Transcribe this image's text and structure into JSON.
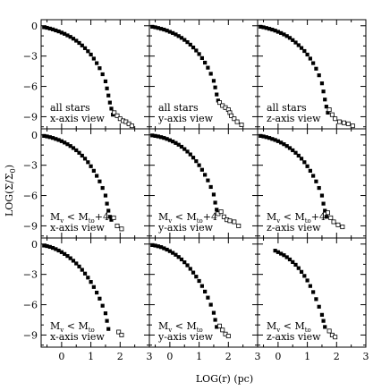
{
  "chart_data": {
    "type": "scatter",
    "layout": {
      "rows": 3,
      "cols": 3,
      "shared_axes": true
    },
    "xlabel": "LOG(r) (pc)",
    "ylabel": "LOG(Σ/Σ",
    "ylabel_sub": "0",
    "ylabel_tail": ")",
    "xlim": [
      -0.7,
      3.0
    ],
    "ylim": [
      -10.2,
      0.6
    ],
    "x_ticks": [
      0,
      1,
      2,
      3
    ],
    "y_ticks": [
      0,
      -3,
      -6,
      -9
    ],
    "marker_legend": {
      "filled": "filled squares",
      "open": "open squares"
    },
    "rows_labels": [
      {
        "line1": "all stars"
      },
      {
        "line1": "M",
        "line1_sub": "v",
        "line1_mid": " < M",
        "line1_sub2": "to",
        "line1_tail": "+4"
      },
      {
        "line1": "M",
        "line1_sub": "v",
        "line1_mid": " < M",
        "line1_sub2": "to",
        "line1_tail": ""
      }
    ],
    "col_views": [
      "x-axis view",
      "y-axis view",
      "z-axis view"
    ],
    "panels": [
      {
        "row": 0,
        "filled": [
          [
            -0.6,
            -0.15
          ],
          [
            -0.5,
            -0.2
          ],
          [
            -0.4,
            -0.28
          ],
          [
            -0.3,
            -0.36
          ],
          [
            -0.2,
            -0.46
          ],
          [
            -0.1,
            -0.56
          ],
          [
            0.0,
            -0.68
          ],
          [
            0.1,
            -0.8
          ],
          [
            0.2,
            -0.95
          ],
          [
            0.3,
            -1.1
          ],
          [
            0.4,
            -1.28
          ],
          [
            0.5,
            -1.48
          ],
          [
            0.6,
            -1.7
          ],
          [
            0.7,
            -1.95
          ],
          [
            0.8,
            -2.22
          ],
          [
            0.9,
            -2.52
          ],
          [
            1.0,
            -2.85
          ],
          [
            1.1,
            -3.25
          ],
          [
            1.2,
            -3.7
          ],
          [
            1.3,
            -4.2
          ],
          [
            1.4,
            -4.8
          ],
          [
            1.5,
            -5.5
          ],
          [
            1.55,
            -6.2
          ],
          [
            1.6,
            -6.9
          ],
          [
            1.65,
            -7.6
          ],
          [
            1.7,
            -8.2
          ],
          [
            1.75,
            -8.8
          ]
        ],
        "open": [
          [
            1.8,
            -8.6
          ],
          [
            1.9,
            -8.9
          ],
          [
            2.0,
            -9.2
          ],
          [
            2.1,
            -9.4
          ],
          [
            2.2,
            -9.5
          ],
          [
            2.3,
            -9.7
          ],
          [
            2.4,
            -9.9
          ]
        ]
      },
      {
        "row": 0,
        "filled": [
          [
            -0.6,
            -0.1
          ],
          [
            -0.5,
            -0.15
          ],
          [
            -0.4,
            -0.22
          ],
          [
            -0.3,
            -0.3
          ],
          [
            -0.2,
            -0.38
          ],
          [
            -0.1,
            -0.48
          ],
          [
            0.0,
            -0.6
          ],
          [
            0.1,
            -0.72
          ],
          [
            0.2,
            -0.86
          ],
          [
            0.3,
            -1.02
          ],
          [
            0.4,
            -1.2
          ],
          [
            0.5,
            -1.4
          ],
          [
            0.6,
            -1.62
          ],
          [
            0.7,
            -1.87
          ],
          [
            0.8,
            -2.15
          ],
          [
            0.9,
            -2.45
          ],
          [
            1.0,
            -2.8
          ],
          [
            1.1,
            -3.2
          ],
          [
            1.2,
            -3.65
          ],
          [
            1.3,
            -4.15
          ],
          [
            1.4,
            -4.75
          ],
          [
            1.5,
            -5.45
          ],
          [
            1.55,
            -6.1
          ],
          [
            1.6,
            -6.8
          ],
          [
            1.65,
            -7.4
          ]
        ],
        "open": [
          [
            1.7,
            -7.6
          ],
          [
            1.8,
            -7.9
          ],
          [
            1.9,
            -8.1
          ],
          [
            2.0,
            -8.3
          ],
          [
            2.05,
            -8.6
          ],
          [
            2.1,
            -8.9
          ],
          [
            2.2,
            -9.2
          ],
          [
            2.3,
            -9.5
          ],
          [
            2.45,
            -9.8
          ]
        ]
      },
      {
        "row": 0,
        "filled": [
          [
            -0.6,
            -0.1
          ],
          [
            -0.5,
            -0.15
          ],
          [
            -0.4,
            -0.22
          ],
          [
            -0.3,
            -0.3
          ],
          [
            -0.2,
            -0.38
          ],
          [
            -0.1,
            -0.48
          ],
          [
            0.0,
            -0.6
          ],
          [
            0.1,
            -0.72
          ],
          [
            0.2,
            -0.86
          ],
          [
            0.3,
            -1.02
          ],
          [
            0.4,
            -1.2
          ],
          [
            0.5,
            -1.42
          ],
          [
            0.6,
            -1.66
          ],
          [
            0.7,
            -1.92
          ],
          [
            0.8,
            -2.2
          ],
          [
            0.9,
            -2.5
          ],
          [
            1.0,
            -2.85
          ],
          [
            1.1,
            -3.25
          ],
          [
            1.2,
            -3.7
          ],
          [
            1.3,
            -4.25
          ],
          [
            1.4,
            -4.9
          ],
          [
            1.5,
            -5.7
          ],
          [
            1.55,
            -6.5
          ],
          [
            1.6,
            -7.3
          ],
          [
            1.65,
            -8.0
          ],
          [
            1.7,
            -8.6
          ]
        ],
        "open": [
          [
            1.75,
            -8.3
          ],
          [
            1.85,
            -8.8
          ],
          [
            1.95,
            -9.2
          ],
          [
            2.1,
            -9.5
          ],
          [
            2.25,
            -9.6
          ],
          [
            2.4,
            -9.7
          ],
          [
            2.55,
            -9.9
          ]
        ]
      },
      {
        "row": 1,
        "filled": [
          [
            -0.6,
            -0.1
          ],
          [
            -0.5,
            -0.15
          ],
          [
            -0.4,
            -0.22
          ],
          [
            -0.3,
            -0.3
          ],
          [
            -0.2,
            -0.4
          ],
          [
            -0.1,
            -0.5
          ],
          [
            0.0,
            -0.62
          ],
          [
            0.1,
            -0.76
          ],
          [
            0.2,
            -0.92
          ],
          [
            0.3,
            -1.1
          ],
          [
            0.4,
            -1.3
          ],
          [
            0.5,
            -1.52
          ],
          [
            0.6,
            -1.77
          ],
          [
            0.7,
            -2.05
          ],
          [
            0.8,
            -2.35
          ],
          [
            0.9,
            -2.7
          ],
          [
            1.0,
            -3.1
          ],
          [
            1.1,
            -3.55
          ],
          [
            1.2,
            -4.05
          ],
          [
            1.3,
            -4.6
          ],
          [
            1.4,
            -5.25
          ],
          [
            1.5,
            -6.0
          ],
          [
            1.55,
            -6.8
          ],
          [
            1.6,
            -7.5
          ],
          [
            1.65,
            -8.1
          ],
          [
            1.7,
            -8.4
          ]
        ],
        "open": [
          [
            1.78,
            -8.2
          ],
          [
            1.9,
            -9.0
          ],
          [
            2.05,
            -9.3
          ]
        ]
      },
      {
        "row": 1,
        "filled": [
          [
            -0.6,
            -0.05
          ],
          [
            -0.5,
            -0.1
          ],
          [
            -0.4,
            -0.15
          ],
          [
            -0.3,
            -0.22
          ],
          [
            -0.2,
            -0.3
          ],
          [
            -0.1,
            -0.4
          ],
          [
            0.0,
            -0.52
          ],
          [
            0.1,
            -0.65
          ],
          [
            0.2,
            -0.8
          ],
          [
            0.3,
            -0.97
          ],
          [
            0.4,
            -1.17
          ],
          [
            0.5,
            -1.4
          ],
          [
            0.6,
            -1.65
          ],
          [
            0.7,
            -1.93
          ],
          [
            0.8,
            -2.25
          ],
          [
            0.9,
            -2.6
          ],
          [
            1.0,
            -3.0
          ],
          [
            1.1,
            -3.45
          ],
          [
            1.2,
            -3.95
          ],
          [
            1.3,
            -4.5
          ],
          [
            1.4,
            -5.15
          ],
          [
            1.5,
            -5.9
          ],
          [
            1.55,
            -6.7
          ],
          [
            1.6,
            -7.4
          ]
        ],
        "open": [
          [
            1.65,
            -7.8
          ],
          [
            1.75,
            -7.6
          ],
          [
            1.85,
            -8.1
          ],
          [
            1.95,
            -8.4
          ],
          [
            2.05,
            -8.5
          ],
          [
            2.2,
            -8.6
          ],
          [
            2.35,
            -9.0
          ]
        ]
      },
      {
        "row": 1,
        "filled": [
          [
            -0.6,
            -0.1
          ],
          [
            -0.5,
            -0.15
          ],
          [
            -0.4,
            -0.22
          ],
          [
            -0.3,
            -0.3
          ],
          [
            -0.2,
            -0.4
          ],
          [
            -0.1,
            -0.5
          ],
          [
            0.0,
            -0.62
          ],
          [
            0.1,
            -0.76
          ],
          [
            0.2,
            -0.92
          ],
          [
            0.3,
            -1.1
          ],
          [
            0.4,
            -1.3
          ],
          [
            0.5,
            -1.52
          ],
          [
            0.6,
            -1.77
          ],
          [
            0.7,
            -2.05
          ],
          [
            0.8,
            -2.35
          ],
          [
            0.9,
            -2.7
          ],
          [
            1.0,
            -3.1
          ],
          [
            1.1,
            -3.55
          ],
          [
            1.2,
            -4.05
          ],
          [
            1.3,
            -4.6
          ],
          [
            1.4,
            -5.25
          ],
          [
            1.5,
            -6.0
          ],
          [
            1.55,
            -6.8
          ],
          [
            1.6,
            -7.5
          ],
          [
            1.65,
            -8.1
          ]
        ],
        "open": [
          [
            1.7,
            -7.7
          ],
          [
            1.8,
            -8.2
          ],
          [
            1.9,
            -8.6
          ],
          [
            2.05,
            -8.9
          ],
          [
            2.2,
            -9.1
          ]
        ]
      },
      {
        "row": 2,
        "filled": [
          [
            -0.6,
            -0.15
          ],
          [
            -0.5,
            -0.2
          ],
          [
            -0.4,
            -0.28
          ],
          [
            -0.3,
            -0.38
          ],
          [
            -0.2,
            -0.5
          ],
          [
            -0.1,
            -0.64
          ],
          [
            0.0,
            -0.8
          ],
          [
            0.1,
            -0.98
          ],
          [
            0.2,
            -1.18
          ],
          [
            0.3,
            -1.4
          ],
          [
            0.4,
            -1.65
          ],
          [
            0.5,
            -1.92
          ],
          [
            0.6,
            -2.22
          ],
          [
            0.7,
            -2.55
          ],
          [
            0.8,
            -2.92
          ],
          [
            0.9,
            -3.32
          ],
          [
            1.0,
            -3.75
          ],
          [
            1.1,
            -4.25
          ],
          [
            1.2,
            -4.8
          ],
          [
            1.3,
            -5.4
          ],
          [
            1.4,
            -6.1
          ],
          [
            1.5,
            -6.85
          ],
          [
            1.55,
            -7.6
          ],
          [
            1.6,
            -8.4
          ]
        ],
        "open": [
          [
            1.95,
            -8.7
          ],
          [
            2.05,
            -9.0
          ]
        ]
      },
      {
        "row": 2,
        "filled": [
          [
            -0.6,
            -0.1
          ],
          [
            -0.5,
            -0.15
          ],
          [
            -0.4,
            -0.22
          ],
          [
            -0.3,
            -0.3
          ],
          [
            -0.2,
            -0.42
          ],
          [
            -0.1,
            -0.55
          ],
          [
            0.0,
            -0.7
          ],
          [
            0.1,
            -0.87
          ],
          [
            0.2,
            -1.06
          ],
          [
            0.3,
            -1.28
          ],
          [
            0.4,
            -1.52
          ],
          [
            0.5,
            -1.8
          ],
          [
            0.6,
            -2.1
          ],
          [
            0.7,
            -2.45
          ],
          [
            0.8,
            -2.82
          ],
          [
            0.9,
            -3.22
          ],
          [
            1.0,
            -3.65
          ],
          [
            1.1,
            -4.15
          ],
          [
            1.2,
            -4.7
          ],
          [
            1.3,
            -5.3
          ],
          [
            1.4,
            -6.0
          ],
          [
            1.5,
            -6.8
          ],
          [
            1.55,
            -7.5
          ],
          [
            1.6,
            -8.2
          ]
        ],
        "open": [
          [
            1.7,
            -8.1
          ],
          [
            1.8,
            -8.5
          ],
          [
            1.9,
            -8.9
          ],
          [
            2.0,
            -9.1
          ]
        ]
      },
      {
        "row": 2,
        "filled": [
          [
            -0.1,
            -0.65
          ],
          [
            0.0,
            -0.8
          ],
          [
            0.1,
            -0.95
          ],
          [
            0.2,
            -1.1
          ],
          [
            0.3,
            -1.3
          ],
          [
            0.4,
            -1.52
          ],
          [
            0.5,
            -1.78
          ],
          [
            0.6,
            -2.05
          ],
          [
            0.7,
            -2.38
          ],
          [
            0.8,
            -2.75
          ],
          [
            0.9,
            -3.15
          ],
          [
            1.0,
            -3.6
          ],
          [
            1.1,
            -4.15
          ],
          [
            1.2,
            -4.75
          ],
          [
            1.3,
            -5.45
          ],
          [
            1.4,
            -6.2
          ],
          [
            1.5,
            -7.0
          ],
          [
            1.55,
            -7.6
          ],
          [
            1.6,
            -8.2
          ]
        ],
        "open": [
          [
            1.75,
            -8.6
          ],
          [
            1.85,
            -9.0
          ],
          [
            1.95,
            -9.2
          ]
        ]
      }
    ]
  }
}
